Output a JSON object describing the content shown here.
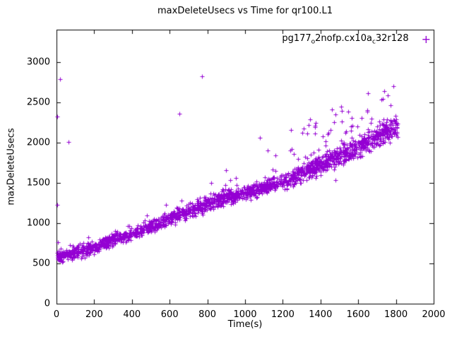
{
  "chart_data": {
    "type": "scatter",
    "title": "maxDeleteUsecs vs Time for qr100.L1",
    "xlabel": "Time(s)",
    "ylabel": "maxDeleteUsecs",
    "xlim": [
      0,
      2000
    ],
    "ylim": [
      0,
      3400
    ],
    "xticks": [
      0,
      200,
      400,
      600,
      800,
      1000,
      1200,
      1400,
      1600,
      1800,
      2000
    ],
    "yticks": [
      0,
      500,
      1000,
      1500,
      2000,
      2500,
      3000
    ],
    "grid": false,
    "background": "#ffffff",
    "axis_color": "#000000",
    "marker": {
      "shape": "plus",
      "color": "#9400d3",
      "size": 7
    },
    "legend": {
      "position": "top-right-inside",
      "marker_symbol": "+",
      "full_name": "pg177_o2nofp.cx10a_c32r128",
      "text_parts": {
        "p1": "pg177",
        "sub1": "o",
        "p2": "2nofp.cx10a",
        "sub2": "c",
        "p3": "32r128"
      }
    },
    "series": [
      {
        "name": "pg177_o2nofp.cx10a_c32r128",
        "x_range": [
          0,
          1810
        ],
        "band_points": 1900,
        "trend": {
          "x": [
            0,
            200,
            400,
            600,
            800,
            1000,
            1200,
            1400,
            1600,
            1800
          ],
          "center": [
            580,
            700,
            880,
            1050,
            1250,
            1370,
            1530,
            1720,
            1930,
            2200
          ],
          "spread": [
            80,
            75,
            70,
            75,
            85,
            85,
            90,
            100,
            110,
            120
          ]
        },
        "y_floor": 470,
        "upper_cloud": {
          "x_range": [
            1240,
            1808
          ],
          "offset_min": 60,
          "offset_max": 650,
          "points": 80
        },
        "outliers": [
          [
            3,
            2320
          ],
          [
            5,
            1230
          ],
          [
            20,
            2790
          ],
          [
            65,
            2010
          ],
          [
            650,
            2360
          ],
          [
            770,
            2820
          ],
          [
            820,
            1500
          ],
          [
            900,
            1660
          ],
          [
            950,
            1560
          ],
          [
            1080,
            2060
          ],
          [
            1120,
            1900
          ],
          [
            1160,
            1840
          ],
          [
            1480,
            1530
          ]
        ]
      }
    ],
    "seed": 20240915
  }
}
